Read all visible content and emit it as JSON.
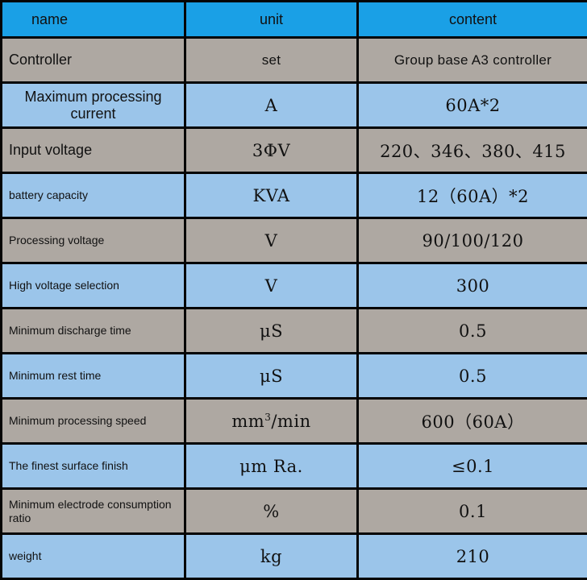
{
  "table": {
    "headers": {
      "name": "name",
      "unit": "unit",
      "content": "content"
    },
    "rows": [
      {
        "name": "Controller",
        "unit": "set",
        "content": "Group base A3 controller"
      },
      {
        "name": "Maximum processing current",
        "unit": "A",
        "content": "60A*2"
      },
      {
        "name": "Input voltage",
        "unit": "3ΦV",
        "content": "220、346、380、415"
      },
      {
        "name": "battery capacity",
        "unit": "KVA",
        "content": "12（60A）*2"
      },
      {
        "name": "Processing voltage",
        "unit": "V",
        "content": "90/100/120"
      },
      {
        "name": "High voltage selection",
        "unit": "V",
        "content": "300"
      },
      {
        "name": "Minimum discharge time",
        "unit": "μS",
        "content": "0.5"
      },
      {
        "name": "Minimum rest time",
        "unit": "μS",
        "content": "0.5"
      },
      {
        "name": "Minimum processing speed",
        "unit": {
          "base": "mm",
          "sup": "3",
          "suffix": "/min"
        },
        "content": "600（60A）"
      },
      {
        "name": "The finest surface finish",
        "unit": "μm Ra.",
        "content": "≤0.1"
      },
      {
        "name": "Minimum electrode consumption ratio",
        "unit": "%",
        "content": "0.1"
      },
      {
        "name": "weight",
        "unit": "kg",
        "content": "210"
      }
    ]
  },
  "colors": {
    "header": "#1aa0e6",
    "row_gray": "#aea8a2",
    "row_blue": "#9bc5ea",
    "border": "#050505"
  }
}
